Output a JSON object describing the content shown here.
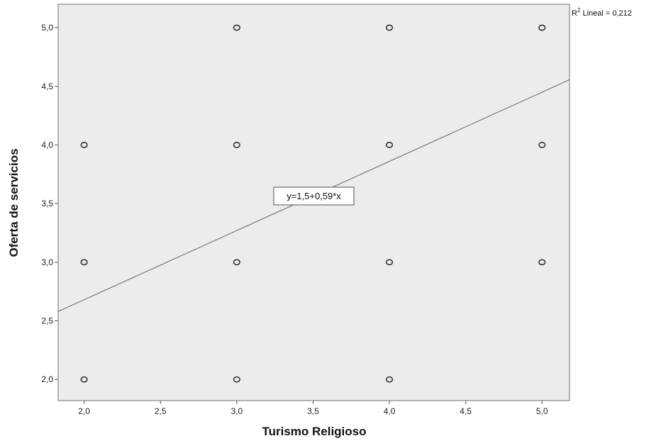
{
  "chart_data": {
    "type": "scatter",
    "title": "",
    "xlabel": "Turismo Religioso",
    "ylabel": "Oferta de servicios",
    "xlim": [
      1.83,
      5.18
    ],
    "ylim": [
      1.82,
      5.2
    ],
    "xticks": [
      "2,0",
      "2,5",
      "3,0",
      "3,5",
      "4,0",
      "4,5",
      "5,0"
    ],
    "yticks": [
      "2,0",
      "2,5",
      "3,0",
      "3,5",
      "4,0",
      "4,5",
      "5,0"
    ],
    "grid": false,
    "series": [
      {
        "points": [
          {
            "x": 2,
            "y": 2
          },
          {
            "x": 2,
            "y": 3
          },
          {
            "x": 2,
            "y": 4
          },
          {
            "x": 3,
            "y": 2
          },
          {
            "x": 3,
            "y": 3
          },
          {
            "x": 3,
            "y": 4
          },
          {
            "x": 3,
            "y": 5
          },
          {
            "x": 4,
            "y": 2
          },
          {
            "x": 4,
            "y": 3
          },
          {
            "x": 4,
            "y": 4
          },
          {
            "x": 4,
            "y": 5
          },
          {
            "x": 5,
            "y": 3
          },
          {
            "x": 5,
            "y": 4
          },
          {
            "x": 5,
            "y": 5
          }
        ]
      }
    ],
    "fit_line": {
      "intercept": 1.5,
      "slope": 0.59
    },
    "equation_label": "y=1,5+0,59*x",
    "r2_label": {
      "prefix": "R",
      "sup": "2",
      "text": " Lineal = 0,212"
    }
  },
  "colors": {
    "plot_bg": "#ececec",
    "frame": "#6f6f6f",
    "marker": "#333333",
    "fit_line": "#7a7a7a"
  }
}
